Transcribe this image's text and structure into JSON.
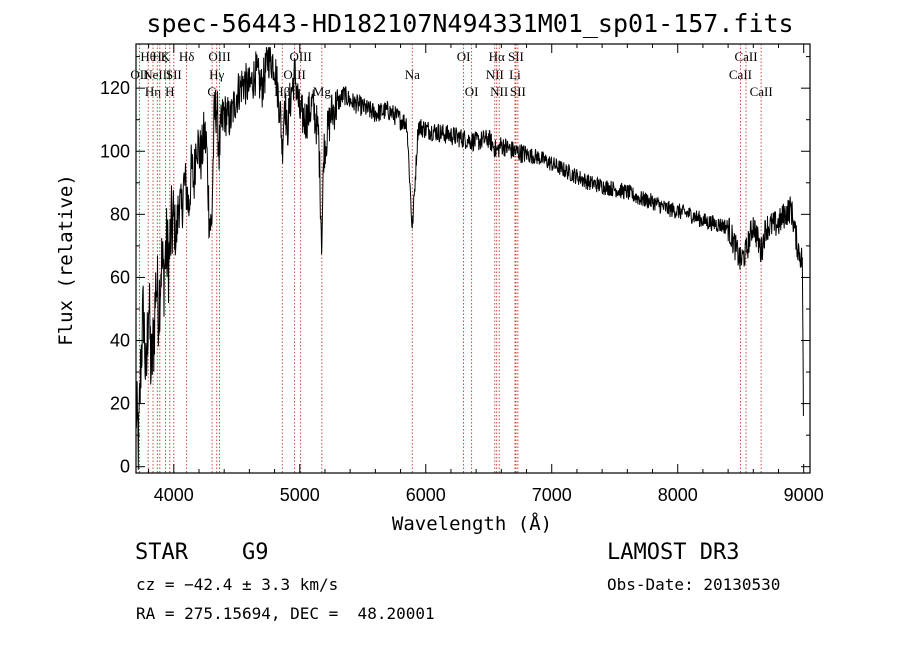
{
  "chart_data": {
    "type": "line",
    "title": "spec-56443-HD182107N494331M01_sp01-157.fits",
    "xlabel": "Wavelength (Å)",
    "ylabel": "Flux (relative)",
    "xlim": [
      3700,
      9050
    ],
    "ylim": [
      -2,
      134
    ],
    "xticks": [
      4000,
      5000,
      6000,
      7000,
      8000,
      9000
    ],
    "yticks": [
      0,
      20,
      40,
      60,
      80,
      100,
      120
    ],
    "series": [
      {
        "name": "flux",
        "x": [
          3700,
          3720,
          3740,
          3760,
          3780,
          3800,
          3820,
          3840,
          3860,
          3880,
          3900,
          3920,
          3940,
          3960,
          3980,
          4000,
          4020,
          4040,
          4060,
          4080,
          4100,
          4120,
          4140,
          4160,
          4180,
          4200,
          4220,
          4240,
          4260,
          4280,
          4300,
          4320,
          4340,
          4360,
          4380,
          4400,
          4450,
          4500,
          4550,
          4600,
          4650,
          4700,
          4750,
          4800,
          4850,
          4861,
          4880,
          4900,
          4920,
          4960,
          5000,
          5050,
          5100,
          5150,
          5175,
          5190,
          5250,
          5300,
          5350,
          5400,
          5450,
          5500,
          5600,
          5700,
          5800,
          5850,
          5893,
          5940,
          6000,
          6100,
          6200,
          6300,
          6400,
          6500,
          6563,
          6600,
          6700,
          6800,
          6900,
          7000,
          7100,
          7200,
          7300,
          7400,
          7500,
          7600,
          7700,
          7800,
          7900,
          8000,
          8100,
          8200,
          8300,
          8400,
          8498,
          8542,
          8600,
          8662,
          8700,
          8800,
          8850,
          8900,
          8950,
          8990,
          9000
        ],
        "values": [
          20,
          5,
          35,
          50,
          25,
          55,
          30,
          40,
          60,
          50,
          65,
          60,
          70,
          65,
          75,
          78,
          72,
          85,
          80,
          90,
          88,
          82,
          95,
          90,
          105,
          100,
          98,
          105,
          102,
          80,
          75,
          110,
          115,
          100,
          108,
          112,
          110,
          118,
          122,
          120,
          125,
          120,
          130,
          128,
          110,
          100,
          118,
          105,
          115,
          125,
          112,
          110,
          115,
          105,
          70,
          100,
          112,
          115,
          118,
          116,
          115,
          114,
          112,
          113,
          110,
          109,
          75,
          108,
          107,
          106,
          105,
          104,
          103,
          104,
          100,
          102,
          100,
          99,
          98,
          96,
          94,
          92,
          90,
          89,
          88,
          87,
          85,
          84,
          82,
          81,
          80,
          78,
          77,
          76,
          65,
          68,
          77,
          68,
          76,
          77,
          80,
          82,
          70,
          65,
          0
        ]
      }
    ],
    "line_markers": [
      {
        "wl": 3727,
        "label": "OII",
        "row": 1
      },
      {
        "wl": 3797,
        "label": "Hθ",
        "row": 0
      },
      {
        "wl": 3835,
        "label": "Hη",
        "row": 2
      },
      {
        "wl": 3869,
        "label": "NeIII",
        "row": 1
      },
      {
        "wl": 3889,
        "label": "Hζ",
        "row": 0
      },
      {
        "wl": 3934,
        "label": "K",
        "row": 0
      },
      {
        "wl": 3968,
        "label": "H",
        "row": 2
      },
      {
        "wl": 4000,
        "label": "SII",
        "row": 1
      },
      {
        "wl": 4102,
        "label": "Hδ",
        "row": 0
      },
      {
        "wl": 4304,
        "label": "G",
        "row": 2
      },
      {
        "wl": 4341,
        "label": "Hγ",
        "row": 1
      },
      {
        "wl": 4363,
        "label": "OIII",
        "row": 0
      },
      {
        "wl": 4861,
        "label": "Hβ",
        "row": 2
      },
      {
        "wl": 4959,
        "label": "OIII",
        "row": 1
      },
      {
        "wl": 5007,
        "label": "OIII",
        "row": 0
      },
      {
        "wl": 5175,
        "label": "Mg",
        "row": 2
      },
      {
        "wl": 5893,
        "label": "Na",
        "row": 1
      },
      {
        "wl": 6300,
        "label": "OI",
        "row": 0
      },
      {
        "wl": 6364,
        "label": "OI",
        "row": 2
      },
      {
        "wl": 6548,
        "label": "NII",
        "row": 1
      },
      {
        "wl": 6563,
        "label": "Hα",
        "row": 0
      },
      {
        "wl": 6583,
        "label": "NII",
        "row": 2
      },
      {
        "wl": 6708,
        "label": "Li",
        "row": 1
      },
      {
        "wl": 6716,
        "label": "SII",
        "row": 0
      },
      {
        "wl": 6731,
        "label": "SII",
        "row": 2
      },
      {
        "wl": 8498,
        "label": "CaII",
        "row": 1
      },
      {
        "wl": 8542,
        "label": "CaII",
        "row": 0
      },
      {
        "wl": 8662,
        "label": "CaII",
        "row": 2
      }
    ]
  },
  "info": {
    "object_type": "STAR",
    "subclass": "G9",
    "survey": "LAMOST DR3",
    "cz": "cz = −42.4 ± 3.3 km/s",
    "obs_date": "Obs-Date: 20130530",
    "coords": "RA = 275.15694, DEC =  48.20001"
  },
  "colors": {
    "line_marker": "#c0392b",
    "spectrum": "#000000"
  }
}
